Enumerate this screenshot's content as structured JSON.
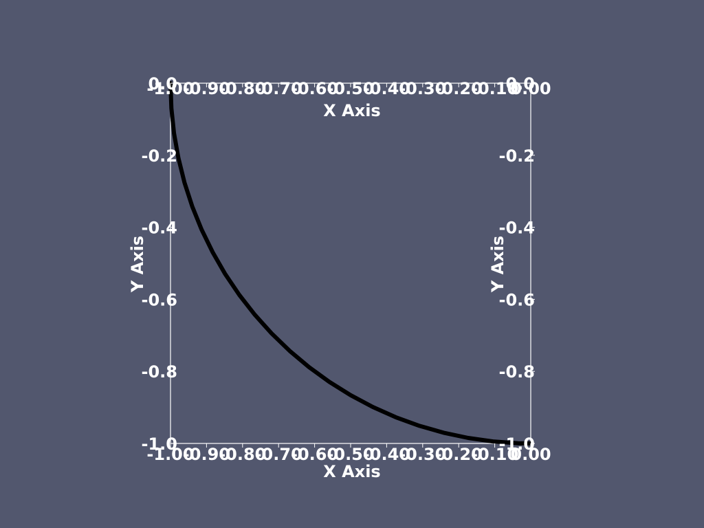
{
  "chart_data": {
    "type": "line",
    "title": "",
    "xlabel": "X Axis",
    "ylabel": "Y Axis",
    "xlim": [
      -1.0,
      0.0
    ],
    "ylim": [
      -1.0,
      0.0
    ],
    "x_ticks": [
      "-1.00",
      "-0.90",
      "-0.80",
      "-0.70",
      "-0.60",
      "-0.50",
      "-0.40",
      "-0.30",
      "-0.20",
      "-0.10",
      "0.00"
    ],
    "y_ticks": [
      "0.0",
      "-0.2",
      "-0.4",
      "-0.6",
      "-0.8",
      "-1.0"
    ],
    "grid": false,
    "series": [
      {
        "color": "#000000",
        "x": [
          -1.0,
          -0.9976,
          -0.9903,
          -0.9781,
          -0.9613,
          -0.9397,
          -0.9135,
          -0.8829,
          -0.848,
          -0.809,
          -0.766,
          -0.7193,
          -0.6691,
          -0.6157,
          -0.5592,
          -0.5,
          -0.4384,
          -0.3746,
          -0.309,
          -0.2419,
          -0.1736,
          -0.1045,
          -0.0349,
          0.0
        ],
        "y": [
          0.0,
          -0.0698,
          -0.1392,
          -0.2079,
          -0.2756,
          -0.342,
          -0.4067,
          -0.4695,
          -0.5299,
          -0.5878,
          -0.6428,
          -0.6947,
          -0.7431,
          -0.788,
          -0.829,
          -0.866,
          -0.8988,
          -0.9272,
          -0.9511,
          -0.9703,
          -0.9848,
          -0.9945,
          -0.9994,
          -1.0
        ]
      }
    ]
  },
  "colors": {
    "background": "#52576e",
    "axes": "#ffffff",
    "text": "#ffffff",
    "line": "#000000"
  }
}
